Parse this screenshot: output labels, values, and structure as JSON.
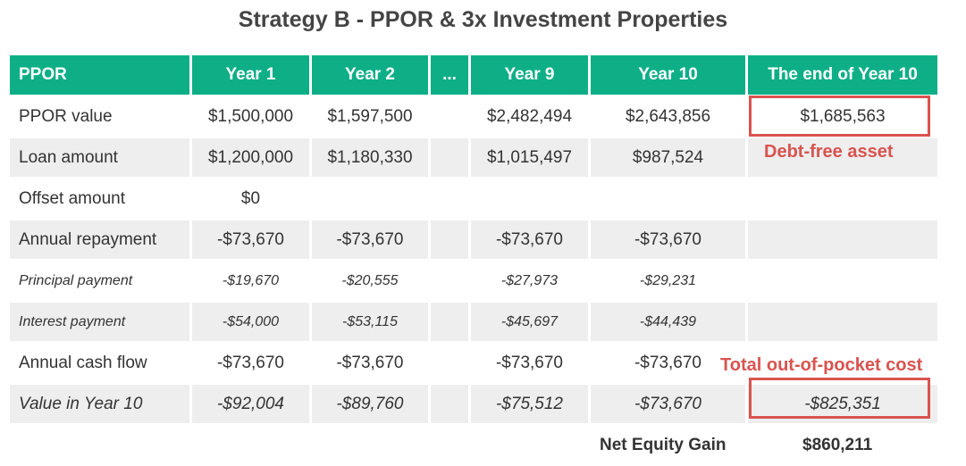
{
  "title": "Strategy B - PPOR & 3x Investment Properties",
  "headers": [
    "PPOR",
    "Year 1",
    "Year 2",
    "...",
    "Year 9",
    "Year 10",
    "The end of Year 10"
  ],
  "rows": [
    {
      "label": "PPOR value",
      "style": "normal",
      "values": [
        "$1,500,000",
        "$1,597,500",
        "",
        "$2,482,494",
        "$2,643,856",
        "$1,685,563"
      ]
    },
    {
      "label": "Loan amount",
      "style": "normal",
      "values": [
        "$1,200,000",
        "$1,180,330",
        "",
        "$1,015,497",
        "$987,524",
        ""
      ]
    },
    {
      "label": "Offset amount",
      "style": "normal",
      "values": [
        "$0",
        "",
        "",
        "",
        "",
        ""
      ]
    },
    {
      "label": "Annual repayment",
      "style": "normal",
      "values": [
        "-$73,670",
        "-$73,670",
        "",
        "-$73,670",
        "-$73,670",
        ""
      ]
    },
    {
      "label": "Principal payment",
      "style": "italic-small",
      "values": [
        "-$19,670",
        "-$20,555",
        "",
        "-$27,973",
        "-$29,231",
        ""
      ]
    },
    {
      "label": "Interest payment",
      "style": "italic-small",
      "values": [
        "-$54,000",
        "-$53,115",
        "",
        "-$45,697",
        "-$44,439",
        ""
      ]
    },
    {
      "label": "Annual cash flow",
      "style": "normal",
      "values": [
        "-$73,670",
        "-$73,670",
        "",
        "-$73,670",
        "-$73,670",
        ""
      ]
    },
    {
      "label": "Value in Year 10",
      "style": "italic",
      "values": [
        "-$92,004",
        "-$89,760",
        "",
        "-$75,512",
        "-$73,670",
        "-$825,351"
      ]
    }
  ],
  "annotations": {
    "debt_free": "Debt-free asset",
    "out_of_pocket": "Total out-of-pocket cost"
  },
  "net_equity": {
    "label": "Net Equity Gain",
    "value": "$860,211"
  },
  "colors": {
    "header": "#0eaf87",
    "highlight": "#d9534f",
    "stripe": "#eeeeee"
  }
}
